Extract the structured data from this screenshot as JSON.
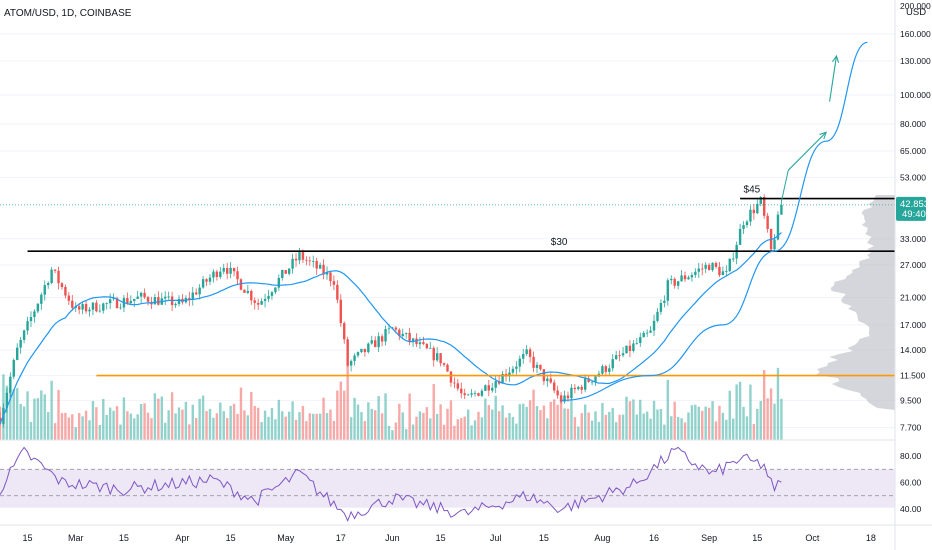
{
  "header": {
    "symbol_label": "ATOM/USD, 1D, COINBASE",
    "currency_label": "USD"
  },
  "price_axis": {
    "ticks": [
      "200.000",
      "160.000",
      "130.000",
      "100.000",
      "80.000",
      "65.000",
      "53.000",
      "42.853",
      "33.000",
      "27.000",
      "21.000",
      "17.000",
      "14.000",
      "11.500",
      "9.500",
      "7.700"
    ],
    "last_price_label": "42.853",
    "countdown_label": "49:40"
  },
  "rsi_axis": {
    "ticks": [
      "80.00",
      "60.00",
      "40.00"
    ]
  },
  "time_axis": {
    "ticks": [
      "15",
      "Mar",
      "15",
      "Apr",
      "15",
      "May",
      "17",
      "Jun",
      "15",
      "Jul",
      "15",
      "Aug",
      "16",
      "Sep",
      "15",
      "Oct",
      "18"
    ]
  },
  "annotations": {
    "level_45": "$45",
    "level_30": "$30"
  },
  "colors": {
    "up": "#26a69a",
    "down": "#ef5350",
    "ma": "#2196f3",
    "support": "#ff9800",
    "resistance": "#000000",
    "arrow": "#26a69a",
    "rsi_line": "#7e57c2",
    "rsi_band": "#ede7f6",
    "last_price_bg": "#26a69a",
    "profile": "#b2b5be"
  },
  "chart_data": {
    "type": "candlestick",
    "title": "ATOM/USD, 1D, COINBASE",
    "y_scale": "log",
    "ylim": [
      7,
      200
    ],
    "x_range": [
      "2021-02-07",
      "2021-10-25"
    ],
    "levels": [
      {
        "label": "$45",
        "value": 45
      },
      {
        "label": "$30",
        "value": 30
      },
      {
        "label": "",
        "value": 11.5
      }
    ],
    "price_anchors": [
      {
        "date": "2021-02-07",
        "close": 8.3
      },
      {
        "date": "2021-02-12",
        "close": 14.0
      },
      {
        "date": "2021-02-22",
        "close": 26.0
      },
      {
        "date": "2021-03-01",
        "close": 19.0
      },
      {
        "date": "2021-03-20",
        "close": 21.0
      },
      {
        "date": "2021-04-01",
        "close": 20.0
      },
      {
        "date": "2021-04-13",
        "close": 27.0
      },
      {
        "date": "2021-04-23",
        "close": 20.0
      },
      {
        "date": "2021-05-05",
        "close": 29.0
      },
      {
        "date": "2021-05-15",
        "close": 24.0
      },
      {
        "date": "2021-05-19",
        "close": 12.5
      },
      {
        "date": "2021-06-01",
        "close": 16.5
      },
      {
        "date": "2021-06-15",
        "close": 13.0
      },
      {
        "date": "2021-06-22",
        "close": 9.5
      },
      {
        "date": "2021-07-03",
        "close": 11.5
      },
      {
        "date": "2021-07-10",
        "close": 13.5
      },
      {
        "date": "2021-07-20",
        "close": 9.5
      },
      {
        "date": "2021-08-01",
        "close": 12.0
      },
      {
        "date": "2021-08-15",
        "close": 16.0
      },
      {
        "date": "2021-08-20",
        "close": 23.0
      },
      {
        "date": "2021-09-01",
        "close": 27.0
      },
      {
        "date": "2021-09-06",
        "close": 25.0
      },
      {
        "date": "2021-09-11",
        "close": 38.0
      },
      {
        "date": "2021-09-16",
        "close": 44.0
      },
      {
        "date": "2021-09-19",
        "close": 30.0
      },
      {
        "date": "2021-09-22",
        "close": 42.85
      }
    ],
    "rsi": {
      "ylim": [
        30,
        90
      ],
      "bands": [
        70,
        50
      ],
      "anchors": [
        {
          "date": "2021-02-07",
          "value": 55
        },
        {
          "date": "2021-02-14",
          "value": 83
        },
        {
          "date": "2021-02-25",
          "value": 60
        },
        {
          "date": "2021-03-15",
          "value": 55
        },
        {
          "date": "2021-04-10",
          "value": 62
        },
        {
          "date": "2021-04-22",
          "value": 46
        },
        {
          "date": "2021-05-05",
          "value": 67
        },
        {
          "date": "2021-05-12",
          "value": 50
        },
        {
          "date": "2021-05-19",
          "value": 35
        },
        {
          "date": "2021-06-01",
          "value": 48
        },
        {
          "date": "2021-06-22",
          "value": 36
        },
        {
          "date": "2021-07-10",
          "value": 50
        },
        {
          "date": "2021-07-20",
          "value": 40
        },
        {
          "date": "2021-08-10",
          "value": 58
        },
        {
          "date": "2021-08-22",
          "value": 84
        },
        {
          "date": "2021-09-02",
          "value": 66
        },
        {
          "date": "2021-09-10",
          "value": 78
        },
        {
          "date": "2021-09-17",
          "value": 73
        },
        {
          "date": "2021-09-20",
          "value": 52
        },
        {
          "date": "2021-09-22",
          "value": 63
        }
      ]
    },
    "forecast_arrows": [
      {
        "from": {
          "date": "2021-09-24",
          "price": 56
        },
        "to": {
          "date": "2021-10-05",
          "price": 75
        }
      },
      {
        "from": {
          "date": "2021-10-06",
          "price": 95
        },
        "to": {
          "date": "2021-10-08",
          "price": 135
        }
      }
    ],
    "curve": [
      {
        "date": "2021-07-20",
        "price": 9.5
      },
      {
        "date": "2021-08-15",
        "price": 11.5
      },
      {
        "date": "2021-09-05",
        "price": 17
      },
      {
        "date": "2021-09-20",
        "price": 30
      },
      {
        "date": "2021-10-05",
        "price": 70
      },
      {
        "date": "2021-10-17",
        "price": 150
      }
    ]
  }
}
